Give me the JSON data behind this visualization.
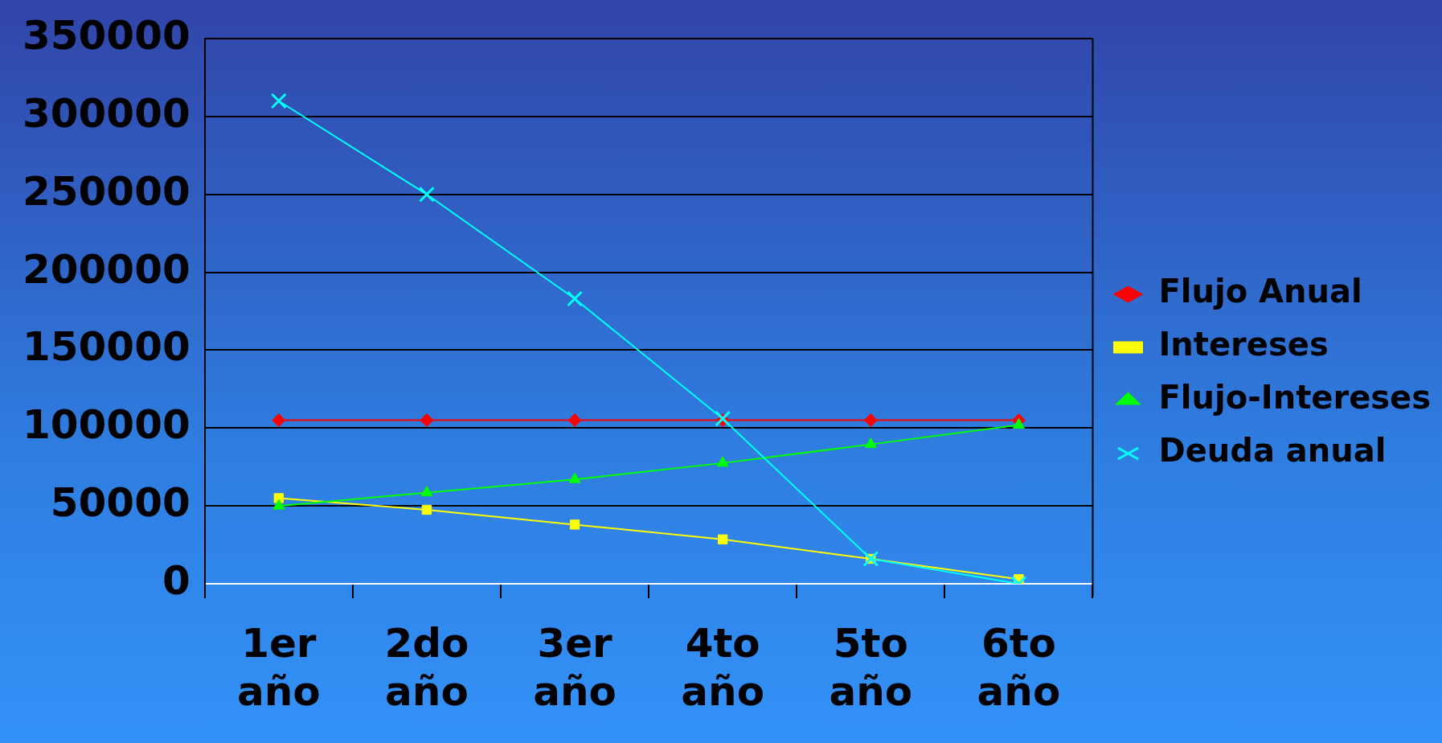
{
  "chart_data": {
    "type": "line",
    "categories": [
      "1er año",
      "2do año",
      "3er año",
      "4to año",
      "5to año",
      "6to año"
    ],
    "series": [
      {
        "name": "Flujo Anual",
        "color": "#ff0000",
        "marker": "diamond",
        "values": [
          105000,
          105000,
          105000,
          105000,
          105000,
          105000
        ]
      },
      {
        "name": "Intereses",
        "color": "#ffff00",
        "marker": "square",
        "values": [
          55000,
          47500,
          38000,
          28500,
          16000,
          3000
        ]
      },
      {
        "name": "Flujo-Intereses",
        "color": "#00ff00",
        "marker": "triangle",
        "values": [
          50000,
          58500,
          67000,
          77500,
          89500,
          102000
        ]
      },
      {
        "name": "Deuda anual",
        "color": "#00ffff",
        "marker": "cross",
        "values": [
          310000,
          250000,
          183000,
          106000,
          16000,
          0
        ]
      }
    ],
    "ylim": [
      0,
      350000
    ],
    "yticks": [
      0,
      50000,
      100000,
      150000,
      200000,
      250000,
      300000,
      350000
    ],
    "grid": "y",
    "legend": "right"
  }
}
